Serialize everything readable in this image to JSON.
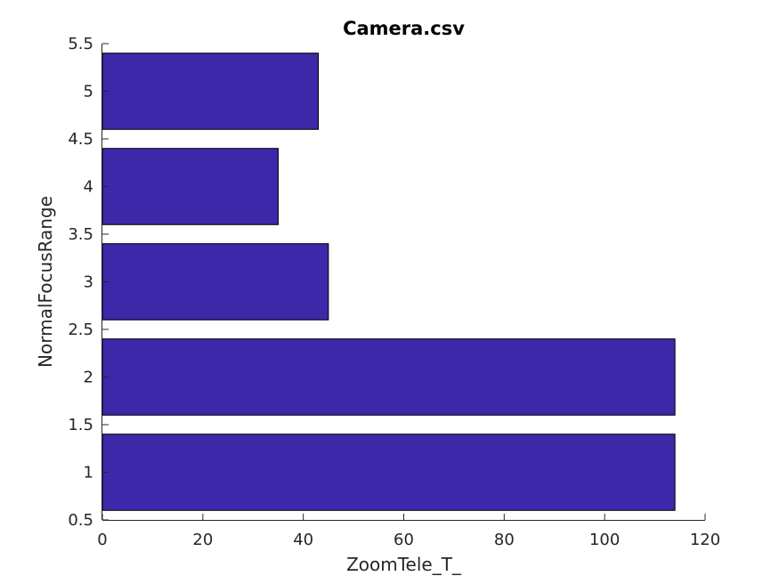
{
  "chart_data": {
    "type": "bar",
    "orientation": "horizontal",
    "title": "Camera.csv",
    "xlabel": "ZoomTele_T_",
    "ylabel": "NormalFocusRange",
    "categories": [
      1,
      2,
      3,
      4,
      5
    ],
    "values": [
      114,
      114,
      45,
      35,
      43
    ],
    "bar_color": "#3c28a8",
    "xlim": [
      0,
      120
    ],
    "ylim": [
      0.5,
      5.5
    ],
    "xticks": [
      0,
      20,
      40,
      60,
      80,
      100,
      120
    ],
    "yticks": [
      0.5,
      1,
      1.5,
      2,
      2.5,
      3,
      3.5,
      4,
      4.5,
      5,
      5.5
    ],
    "grid": false,
    "legend": "none"
  }
}
